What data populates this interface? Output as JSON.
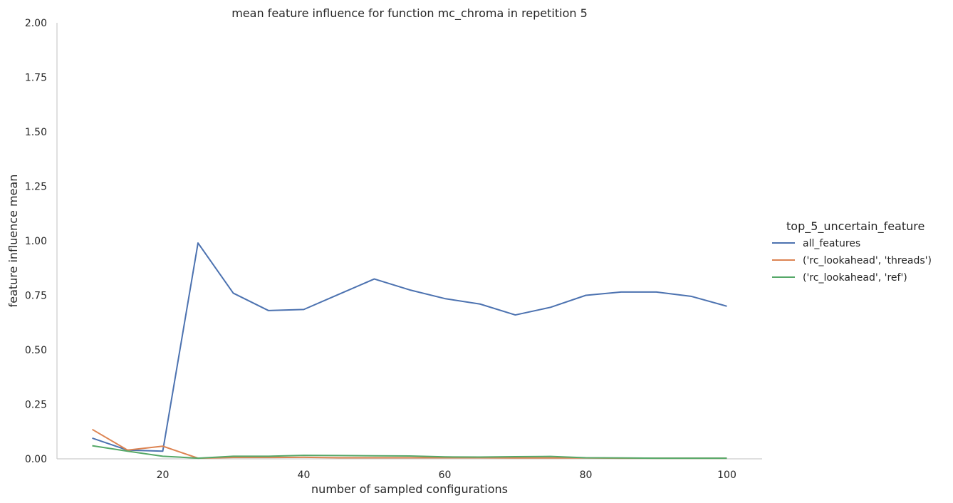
{
  "chart_data": {
    "type": "line",
    "title": "mean feature influence for function mc_chroma in repetition 5",
    "xlabel": "number of sampled configurations",
    "ylabel": "feature influence mean",
    "xlim": [
      5,
      105
    ],
    "ylim": [
      0,
      2.0
    ],
    "xticks": [
      "20",
      "40",
      "60",
      "80",
      "100"
    ],
    "xtick_values": [
      20,
      40,
      60,
      80,
      100
    ],
    "yticks": [
      "0.00",
      "0.25",
      "0.50",
      "0.75",
      "1.00",
      "1.25",
      "1.50",
      "1.75",
      "2.00"
    ],
    "ytick_values": [
      0,
      0.25,
      0.5,
      0.75,
      1.0,
      1.25,
      1.5,
      1.75,
      2.0
    ],
    "grid": false,
    "legend": {
      "title": "top_5_uncertain_feature",
      "placement": "right"
    },
    "x": [
      10,
      15,
      20,
      25,
      30,
      35,
      40,
      45,
      50,
      55,
      60,
      65,
      70,
      75,
      80,
      85,
      90,
      95,
      100
    ],
    "series": [
      {
        "name": "all_features",
        "color": "#4c72b0",
        "values": [
          0.095,
          0.04,
          0.035,
          0.99,
          0.76,
          0.68,
          0.685,
          0.755,
          0.825,
          0.775,
          0.735,
          0.71,
          0.66,
          0.695,
          0.75,
          0.765,
          0.765,
          0.745,
          0.7
        ]
      },
      {
        "name": "('rc_lookahead', 'threads')",
        "color": "#dd8452",
        "values": [
          0.135,
          0.04,
          0.058,
          0.003,
          0.006,
          0.006,
          0.007,
          0.005,
          0.005,
          0.005,
          0.005,
          0.005,
          0.004,
          0.004,
          0.004,
          0.003,
          0.003,
          0.003,
          0.003
        ]
      },
      {
        "name": "('rc_lookahead', 'ref')",
        "color": "#55a868",
        "values": [
          0.06,
          0.035,
          0.012,
          0.003,
          0.012,
          0.012,
          0.016,
          0.015,
          0.014,
          0.013,
          0.009,
          0.008,
          0.01,
          0.011,
          0.005,
          0.004,
          0.003,
          0.003,
          0.003
        ]
      }
    ]
  }
}
